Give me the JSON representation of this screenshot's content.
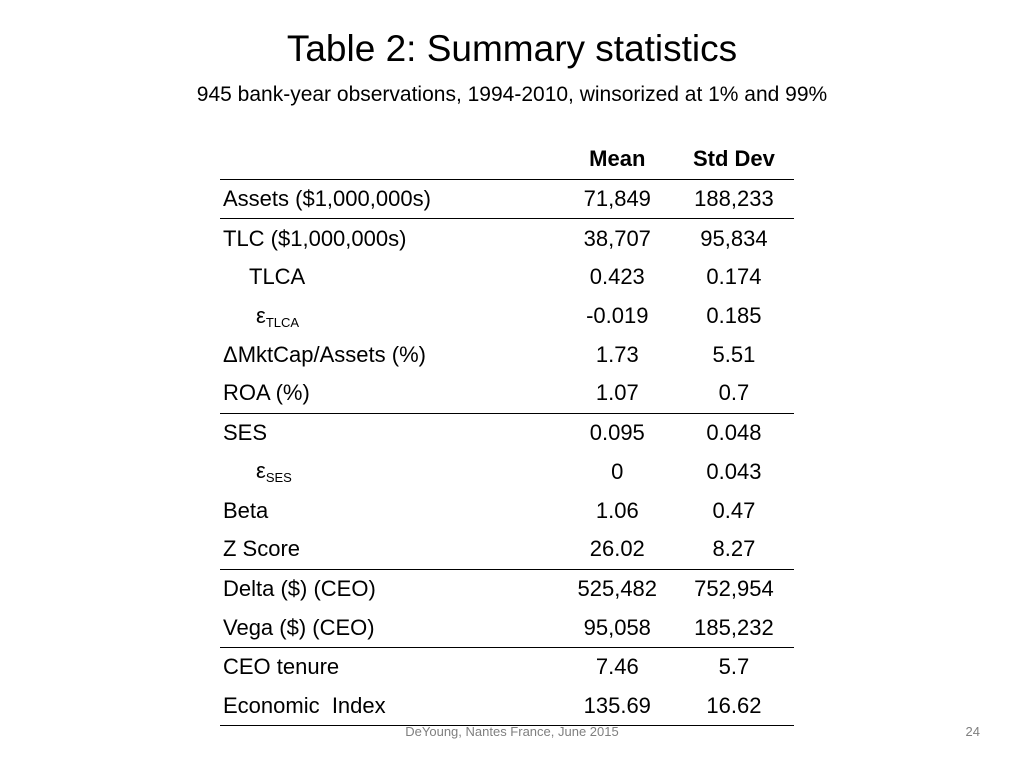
{
  "slide": {
    "title": "Table 2: Summary statistics",
    "subtitle": "945 bank-year observations, 1994-2010, winsorized at 1% and 99%",
    "footer": "DeYoung, Nantes France, June 2015",
    "page_number": "24"
  },
  "table": {
    "headers": {
      "blank": "",
      "mean": "Mean",
      "std": "Std Dev"
    },
    "rows": [
      {
        "label": "Assets ($1,000,000s)",
        "mean": "71,849",
        "std": "188,233"
      },
      {
        "label": "TLC ($1,000,000s)",
        "mean": "38,707",
        "std": "95,834"
      },
      {
        "label": "TLCA",
        "mean": "0.423",
        "std": "0.174"
      },
      {
        "label": "ε",
        "label_sub": "TLCA",
        "mean": "-0.019",
        "std": "0.185"
      },
      {
        "label": "ΔMktCap/Assets (%)",
        "mean": "1.73",
        "std": "5.51"
      },
      {
        "label": "ROA (%)",
        "mean": "1.07",
        "std": "0.7"
      },
      {
        "label": "SES",
        "mean": "0.095",
        "std": "0.048"
      },
      {
        "label": "ε",
        "label_sub": "SES",
        "mean": "0",
        "std": "0.043"
      },
      {
        "label": "Beta",
        "mean": "1.06",
        "std": "0.47"
      },
      {
        "label": "Z Score",
        "mean": "26.02",
        "std": "8.27"
      },
      {
        "label": "Delta ($) (CEO)",
        "mean": "525,482",
        "std": "752,954"
      },
      {
        "label": "Vega ($) (CEO)",
        "mean": "95,058",
        "std": "185,232"
      },
      {
        "label": "CEO tenure",
        "mean": "7.46",
        "std": "5.7"
      },
      {
        "label": "Economic  Index",
        "mean": "135.69",
        "std": "16.62"
      }
    ]
  }
}
